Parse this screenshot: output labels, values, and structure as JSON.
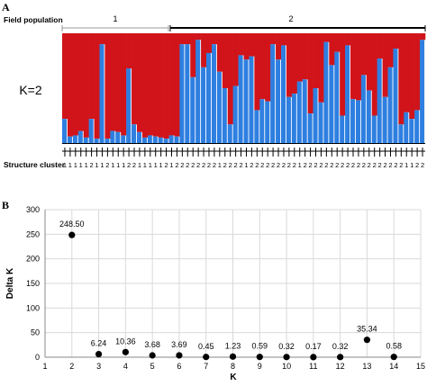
{
  "panel_a": {
    "letter": "A",
    "field_population_label": "Field population",
    "population_1_label": "1",
    "population_2_label": "2",
    "k_label": "K=2",
    "structure_cluster_label": "Structure cluster"
  },
  "panel_b": {
    "letter": "B"
  },
  "colors": {
    "red": "#d0141a",
    "blue": "#2e7fe0",
    "dots": "#000000"
  },
  "chart_data": [
    {
      "type": "bar",
      "stacked": true,
      "k_label": "K=2",
      "ylim": [
        0,
        1
      ],
      "population_split_index": 22,
      "series": [
        {
          "name": "",
          "color": "#2e7fe0",
          "values": [
            0.22,
            0.06,
            0.07,
            0.11,
            0.05,
            0.22,
            0.04,
            0.9,
            0.04,
            0.11,
            0.1,
            0.07,
            0.68,
            0.17,
            0.1,
            0.05,
            0.07,
            0.06,
            0.05,
            0.04,
            0.07,
            0.06,
            0.9,
            0.9,
            0.6,
            0.94,
            0.69,
            0.82,
            0.9,
            0.65,
            0.5,
            0.17,
            0.52,
            0.8,
            0.76,
            0.79,
            0.3,
            0.4,
            0.38,
            0.9,
            0.76,
            0.89,
            0.42,
            0.45,
            0.56,
            0.58,
            0.27,
            0.5,
            0.37,
            0.92,
            0.71,
            0.83,
            0.25,
            0.89,
            0.4,
            0.39,
            0.62,
            0.48,
            0.25,
            0.77,
            0.42,
            0.69,
            0.86,
            0.17,
            0.28,
            0.22,
            0.3,
            0.94
          ]
        },
        {
          "name": "",
          "color": "#d0141a",
          "values": "complement of blue (1 - value)"
        }
      ],
      "structure_cluster": [
        1,
        1,
        1,
        1,
        1,
        2,
        1,
        1,
        2,
        1,
        1,
        1,
        2,
        2,
        1,
        1,
        1,
        1,
        1,
        2,
        1,
        2,
        2,
        2,
        2,
        2,
        2,
        2,
        2,
        1,
        2,
        2,
        2,
        2,
        1,
        2,
        2,
        2,
        2,
        2,
        2,
        2,
        2,
        2,
        1,
        2,
        2,
        2,
        2,
        2,
        2,
        2,
        2,
        2,
        2,
        2,
        2,
        2,
        2,
        2,
        2,
        2,
        2,
        2,
        1,
        1,
        2,
        2
      ]
    },
    {
      "type": "scatter",
      "xlabel": "K",
      "ylabel": "Delta K",
      "xlim": [
        1,
        15
      ],
      "ylim": [
        0,
        300
      ],
      "xticks": [
        1,
        2,
        3,
        4,
        5,
        6,
        7,
        8,
        9,
        10,
        11,
        12,
        13,
        14,
        15
      ],
      "yticks": [
        0,
        50,
        100,
        150,
        200,
        250,
        300
      ],
      "grid": true,
      "points": [
        {
          "x": 2,
          "y": 248.5,
          "label": "248.50"
        },
        {
          "x": 3,
          "y": 6.24,
          "label": "6.24"
        },
        {
          "x": 4,
          "y": 10.36,
          "label": "10.36"
        },
        {
          "x": 5,
          "y": 3.68,
          "label": "3.68"
        },
        {
          "x": 6,
          "y": 3.69,
          "label": "3.69"
        },
        {
          "x": 7,
          "y": 0.45,
          "label": "0.45"
        },
        {
          "x": 8,
          "y": 1.23,
          "label": "1.23"
        },
        {
          "x": 9,
          "y": 0.59,
          "label": "0.59"
        },
        {
          "x": 10,
          "y": 0.32,
          "label": "0.32"
        },
        {
          "x": 11,
          "y": 0.17,
          "label": "0.17"
        },
        {
          "x": 12,
          "y": 0.32,
          "label": "0.32"
        },
        {
          "x": 13,
          "y": 35.34,
          "label": "35.34"
        },
        {
          "x": 14,
          "y": 0.58,
          "label": "0.58"
        }
      ]
    }
  ]
}
